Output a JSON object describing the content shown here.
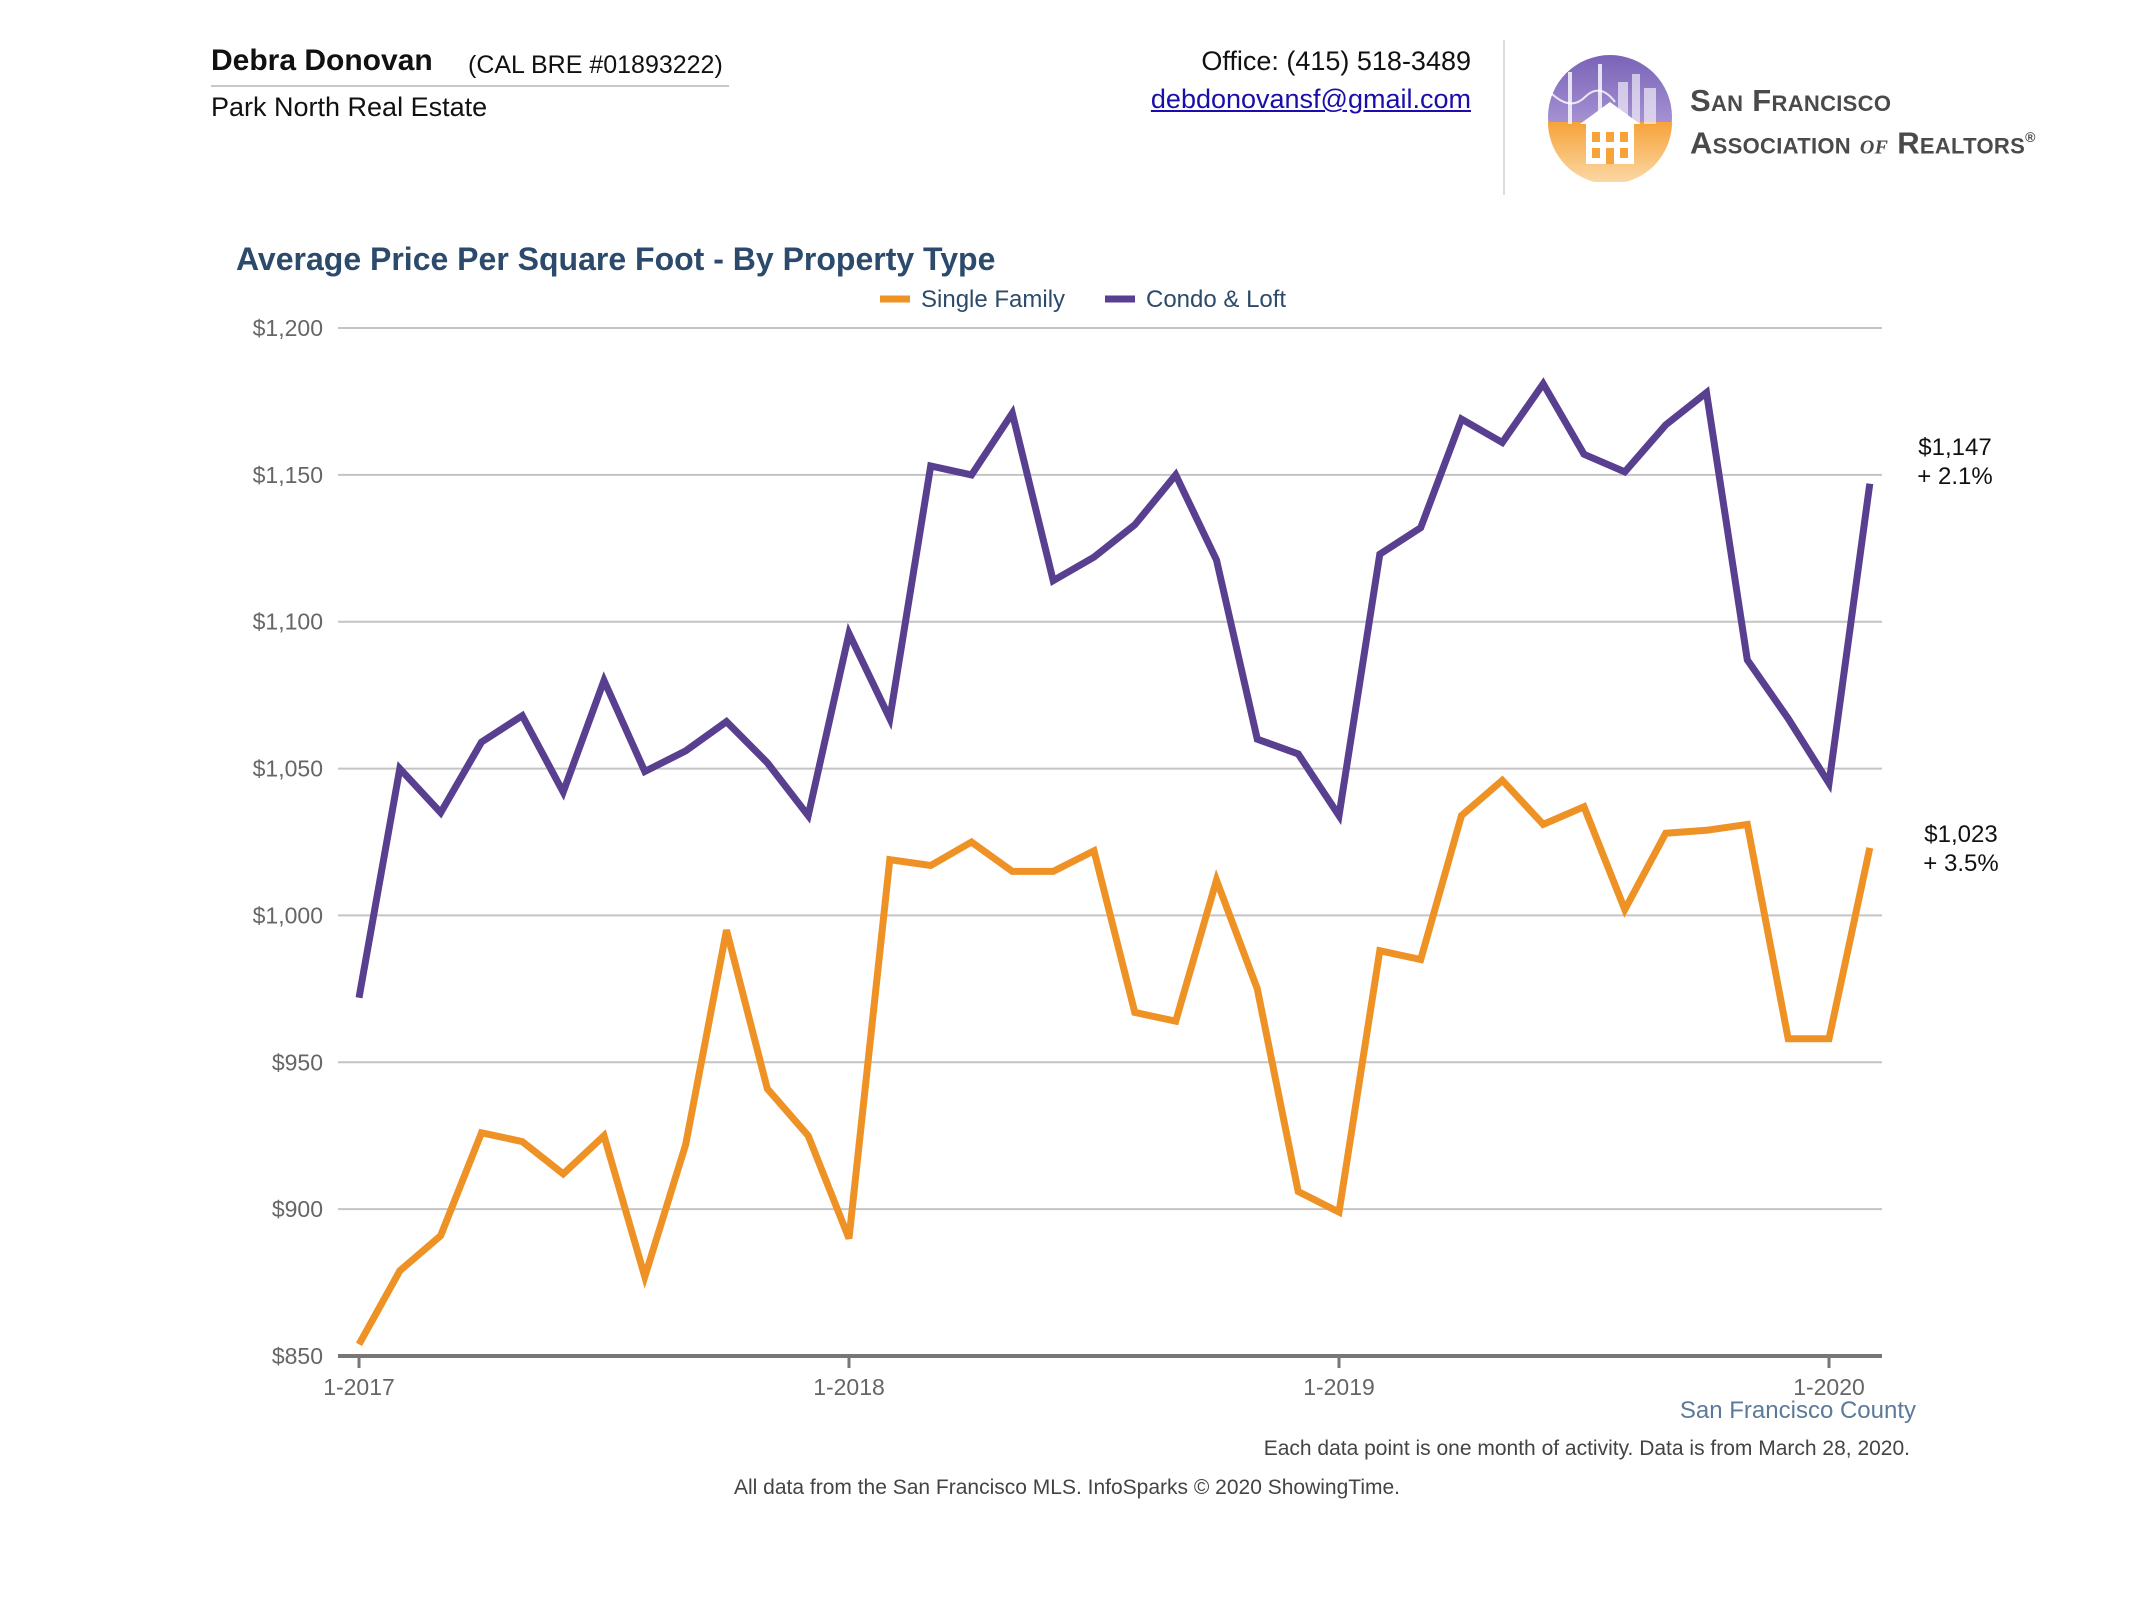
{
  "header": {
    "agent_name": "Debra Donovan",
    "agent_license": "(CAL BRE #01893222)",
    "company": "Park North Real Estate",
    "phone": "Office: (415) 518-3489",
    "email": "debdonovansf@gmail.com",
    "association_line1": "San Francisco",
    "association_line2_a": "Association",
    "association_line2_b": "of",
    "association_line2_c": "Realtors",
    "association_mark": "®"
  },
  "colors": {
    "single_family": "#ef9225",
    "condo_loft": "#583f8f",
    "grid": "#c4c4c4",
    "axis": "#777777",
    "title": "#2c4a6b"
  },
  "footer": {
    "region": "San Francisco County",
    "note1": "Each data point is one month of activity. Data is from March 28, 2020.",
    "note2": "All data from the San Francisco MLS. InfoSparks © 2020 ShowingTime."
  },
  "chart_data": {
    "type": "line",
    "title": "Average Price Per Square Foot - By Property Type",
    "xlabel": "",
    "ylabel": "",
    "ylim": [
      850,
      1200
    ],
    "yticks": [
      850,
      900,
      950,
      1000,
      1050,
      1100,
      1150,
      1200
    ],
    "ytick_labels": [
      "$850",
      "$900",
      "$950",
      "$1,000",
      "$1,050",
      "$1,100",
      "$1,150",
      "$1,200"
    ],
    "xticks": [
      {
        "index": 0,
        "label": "1-2017"
      },
      {
        "index": 12,
        "label": "1-2018"
      },
      {
        "index": 24,
        "label": "1-2019"
      },
      {
        "index": 36,
        "label": "1-2020"
      }
    ],
    "x": [
      "2017-01",
      "2017-02",
      "2017-03",
      "2017-04",
      "2017-05",
      "2017-06",
      "2017-07",
      "2017-08",
      "2017-09",
      "2017-10",
      "2017-11",
      "2017-12",
      "2018-01",
      "2018-02",
      "2018-03",
      "2018-04",
      "2018-05",
      "2018-06",
      "2018-07",
      "2018-08",
      "2018-09",
      "2018-10",
      "2018-11",
      "2018-12",
      "2019-01",
      "2019-02",
      "2019-03",
      "2019-04",
      "2019-05",
      "2019-06",
      "2019-07",
      "2019-08",
      "2019-09",
      "2019-10",
      "2019-11",
      "2019-12",
      "2020-01",
      "2020-02"
    ],
    "legend_position": "top-center",
    "grid": true,
    "series": [
      {
        "name": "Single Family",
        "color": "#ef9225",
        "values": [
          854,
          879,
          891,
          926,
          923,
          912,
          925,
          877,
          922,
          995,
          941,
          925,
          890,
          1019,
          1017,
          1025,
          1015,
          1015,
          1022,
          967,
          964,
          1012,
          975,
          906,
          899,
          988,
          985,
          1034,
          1046,
          1031,
          1037,
          1002,
          1028,
          1029,
          1031,
          958,
          958,
          1023
        ],
        "end_value_label": "$1,023",
        "end_change_label": "+ 3.5%"
      },
      {
        "name": "Condo & Loft",
        "color": "#583f8f",
        "values": [
          972,
          1050,
          1035,
          1059,
          1068,
          1042,
          1080,
          1049,
          1056,
          1066,
          1052,
          1034,
          1096,
          1067,
          1153,
          1150,
          1171,
          1114,
          1122,
          1133,
          1150,
          1121,
          1060,
          1055,
          1034,
          1123,
          1132,
          1169,
          1161,
          1181,
          1157,
          1151,
          1167,
          1178,
          1087,
          1067,
          1045,
          1147
        ],
        "end_value_label": "$1,147",
        "end_change_label": "+ 2.1%"
      }
    ]
  }
}
